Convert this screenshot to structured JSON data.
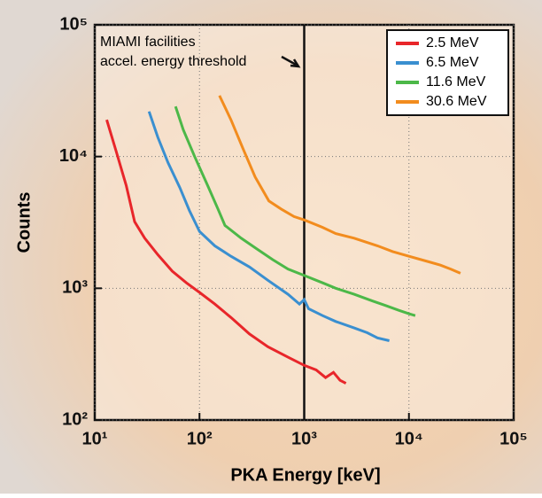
{
  "chart_data": {
    "type": "line",
    "xlabel": "PKA Energy [keV]",
    "ylabel": "Counts",
    "annotation": [
      "MIAMI facilities",
      "accel. energy threshold"
    ],
    "threshold": 1000,
    "xscale": "log",
    "yscale": "log",
    "grid": true,
    "legend": "upper right",
    "xlim": [
      10,
      100000
    ],
    "ylim": [
      100,
      100000
    ],
    "xticks": [
      {
        "value": 10,
        "label": "10¹"
      },
      {
        "value": 100,
        "label": "10²"
      },
      {
        "value": 1000,
        "label": "10³"
      },
      {
        "value": 10000,
        "label": "10⁴"
      },
      {
        "value": 100000,
        "label": "10⁵"
      }
    ],
    "yticks": [
      {
        "value": 100,
        "label": "10²"
      },
      {
        "value": 1000,
        "label": "10³"
      },
      {
        "value": 10000,
        "label": "10⁴"
      },
      {
        "value": 100000,
        "label": "10⁵"
      }
    ],
    "series": [
      {
        "name": "2.5 MeV",
        "color": "#e8262a",
        "x": [
          13,
          16,
          20,
          24,
          30,
          40,
          55,
          75,
          100,
          140,
          200,
          300,
          450,
          700,
          1000,
          1300,
          1600,
          1900,
          2200,
          2500
        ],
        "values": [
          19000,
          11000,
          6000,
          3200,
          2400,
          1800,
          1350,
          1100,
          930,
          760,
          600,
          450,
          360,
          300,
          260,
          240,
          210,
          230,
          200,
          190
        ]
      },
      {
        "name": "6.5 MeV",
        "color": "#3a8fd0",
        "x": [
          33,
          40,
          50,
          65,
          80,
          100,
          140,
          200,
          300,
          450,
          700,
          900,
          1000,
          1100,
          1500,
          2000,
          3000,
          4000,
          5000,
          6500
        ],
        "values": [
          22000,
          14000,
          9000,
          5800,
          3900,
          2700,
          2100,
          1750,
          1450,
          1150,
          900,
          760,
          820,
          700,
          620,
          560,
          500,
          460,
          420,
          400
        ]
      },
      {
        "name": "11.6 MeV",
        "color": "#4cb848",
        "x": [
          59,
          70,
          90,
          120,
          150,
          175,
          250,
          350,
          500,
          700,
          1000,
          1500,
          2000,
          3000,
          4500,
          6000,
          8000,
          10000,
          11500
        ],
        "values": [
          24000,
          16000,
          10000,
          6000,
          4000,
          3000,
          2400,
          2000,
          1650,
          1400,
          1250,
          1100,
          1000,
          900,
          800,
          740,
          680,
          640,
          620
        ]
      },
      {
        "name": "30.6 MeV",
        "color": "#f28c1e",
        "x": [
          155,
          200,
          260,
          340,
          460,
          600,
          800,
          1000,
          1500,
          2000,
          3000,
          5000,
          7000,
          10000,
          15000,
          20000,
          25000,
          31000
        ],
        "values": [
          29000,
          19000,
          11500,
          7000,
          4600,
          4000,
          3500,
          3300,
          2900,
          2600,
          2400,
          2100,
          1900,
          1750,
          1600,
          1500,
          1400,
          1300
        ]
      }
    ]
  }
}
